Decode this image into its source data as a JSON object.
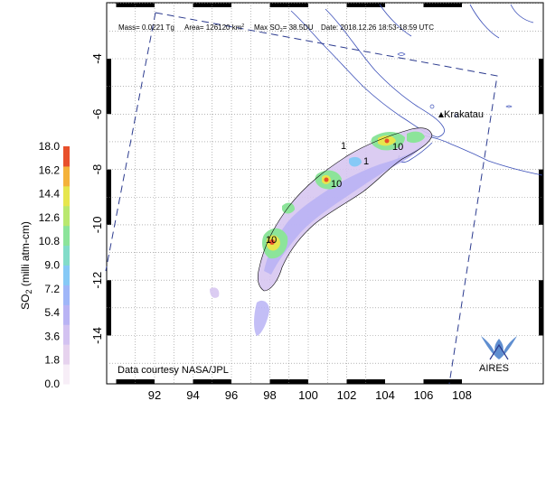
{
  "header": {
    "mass": "Mass= 0.0221 Tg",
    "area": "Area= 126120 km",
    "area_sup": "2",
    "max_so2_prefix": "Max SO",
    "max_so2_sub": "2",
    "max_so2_value": "= 38.5DU",
    "date": "Date: 2018.12.26  18:53-18:59 UTC"
  },
  "map": {
    "x_ticks": [
      "92",
      "94",
      "96",
      "98",
      "100",
      "102",
      "104",
      "106",
      "108"
    ],
    "y_ticks": [
      "-4",
      "-6",
      "-8",
      "-10",
      "-12",
      "-14"
    ],
    "volcano_label": "Krakatau",
    "credit": "Data courtesy NASA/JPL",
    "logo_text": "AIRES",
    "contour_labels": [
      "10",
      "10",
      "10",
      "1",
      "1"
    ]
  },
  "colorbar": {
    "title_prefix": "SO",
    "title_sub": "2",
    "title_suffix": " (milli atm-cm)",
    "ticks": [
      "18.0",
      "16.2",
      "14.4",
      "12.6",
      "10.8",
      "9.0",
      "7.2",
      "5.4",
      "3.6",
      "1.8",
      "0.0"
    ],
    "colors": [
      "#f7eef7",
      "#e6d2ee",
      "#d3c2f1",
      "#b9b3f4",
      "#9fb6f8",
      "#86c9f6",
      "#82dcc9",
      "#8ce49a",
      "#b9e86e",
      "#e6e64d",
      "#f4b23a",
      "#e8502b"
    ]
  },
  "colors": {
    "frame": "#000000",
    "grid": "#8a8a8a",
    "coastline": "#3b4fb8",
    "swath": "#2b3a8e"
  }
}
